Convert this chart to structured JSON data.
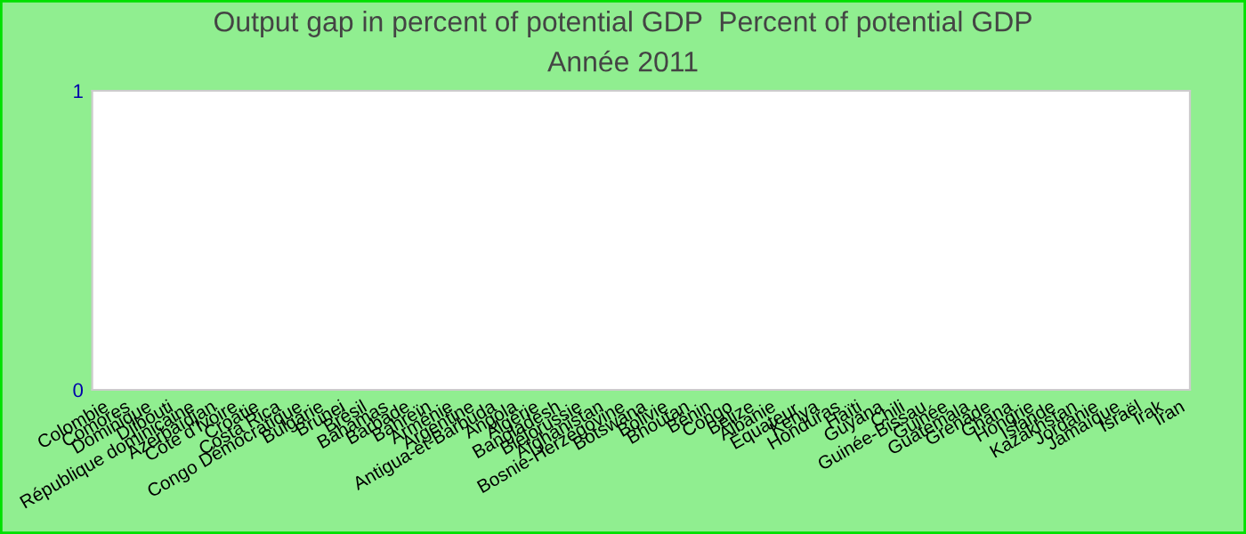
{
  "chart_data": {
    "type": "bar",
    "title": "Output gap in percent of potential GDP  Percent of potential GDP",
    "subtitle": "Année 2011",
    "categories": [
      "Colombie",
      "Comores",
      "Dominique",
      "Djibouti",
      "République dominicaine",
      "Azerbaïdjan",
      "Côte d'Ivoire",
      "Croatie",
      "Costa Rica",
      "Congo Démocratique",
      "Bulgarie",
      "Brunei",
      "Brésil",
      "Bahamas",
      "Barbade",
      "Bahreïn",
      "Arménie",
      "Argentine",
      "Antigua-et-Barbuda",
      "Angola",
      "Algérie",
      "Bangladesh",
      "Biélorussie",
      "Afghanistan",
      "Bosnie-Herzégovine",
      "Botswana",
      "Bolivie",
      "Bhoutan",
      "Bénin",
      "Congo",
      "Belize",
      "Albanie",
      "Équateur",
      "Kenya",
      "Honduras",
      "Haïti",
      "Guyana",
      "Chili",
      "Guinée-Bissau",
      "Guinée",
      "Guatemala",
      "Grenade",
      "Ghana",
      "Hongrie",
      "Islande",
      "Kazakhstan",
      "Jordanie",
      "Jamaïque",
      "Israël",
      "Irak",
      "Iran"
    ],
    "values": [
      null,
      null,
      null,
      null,
      null,
      null,
      null,
      null,
      null,
      null,
      null,
      null,
      null,
      null,
      null,
      null,
      null,
      null,
      null,
      null,
      null,
      null,
      null,
      null,
      null,
      null,
      null,
      null,
      null,
      null,
      null,
      null,
      null,
      null,
      null,
      null,
      null,
      null,
      null,
      null,
      null,
      null,
      null,
      null,
      null,
      null,
      null,
      null,
      null,
      null,
      null
    ],
    "ylim": [
      0,
      1
    ],
    "yticks": [
      0,
      1
    ],
    "grid": false,
    "legend": false
  }
}
